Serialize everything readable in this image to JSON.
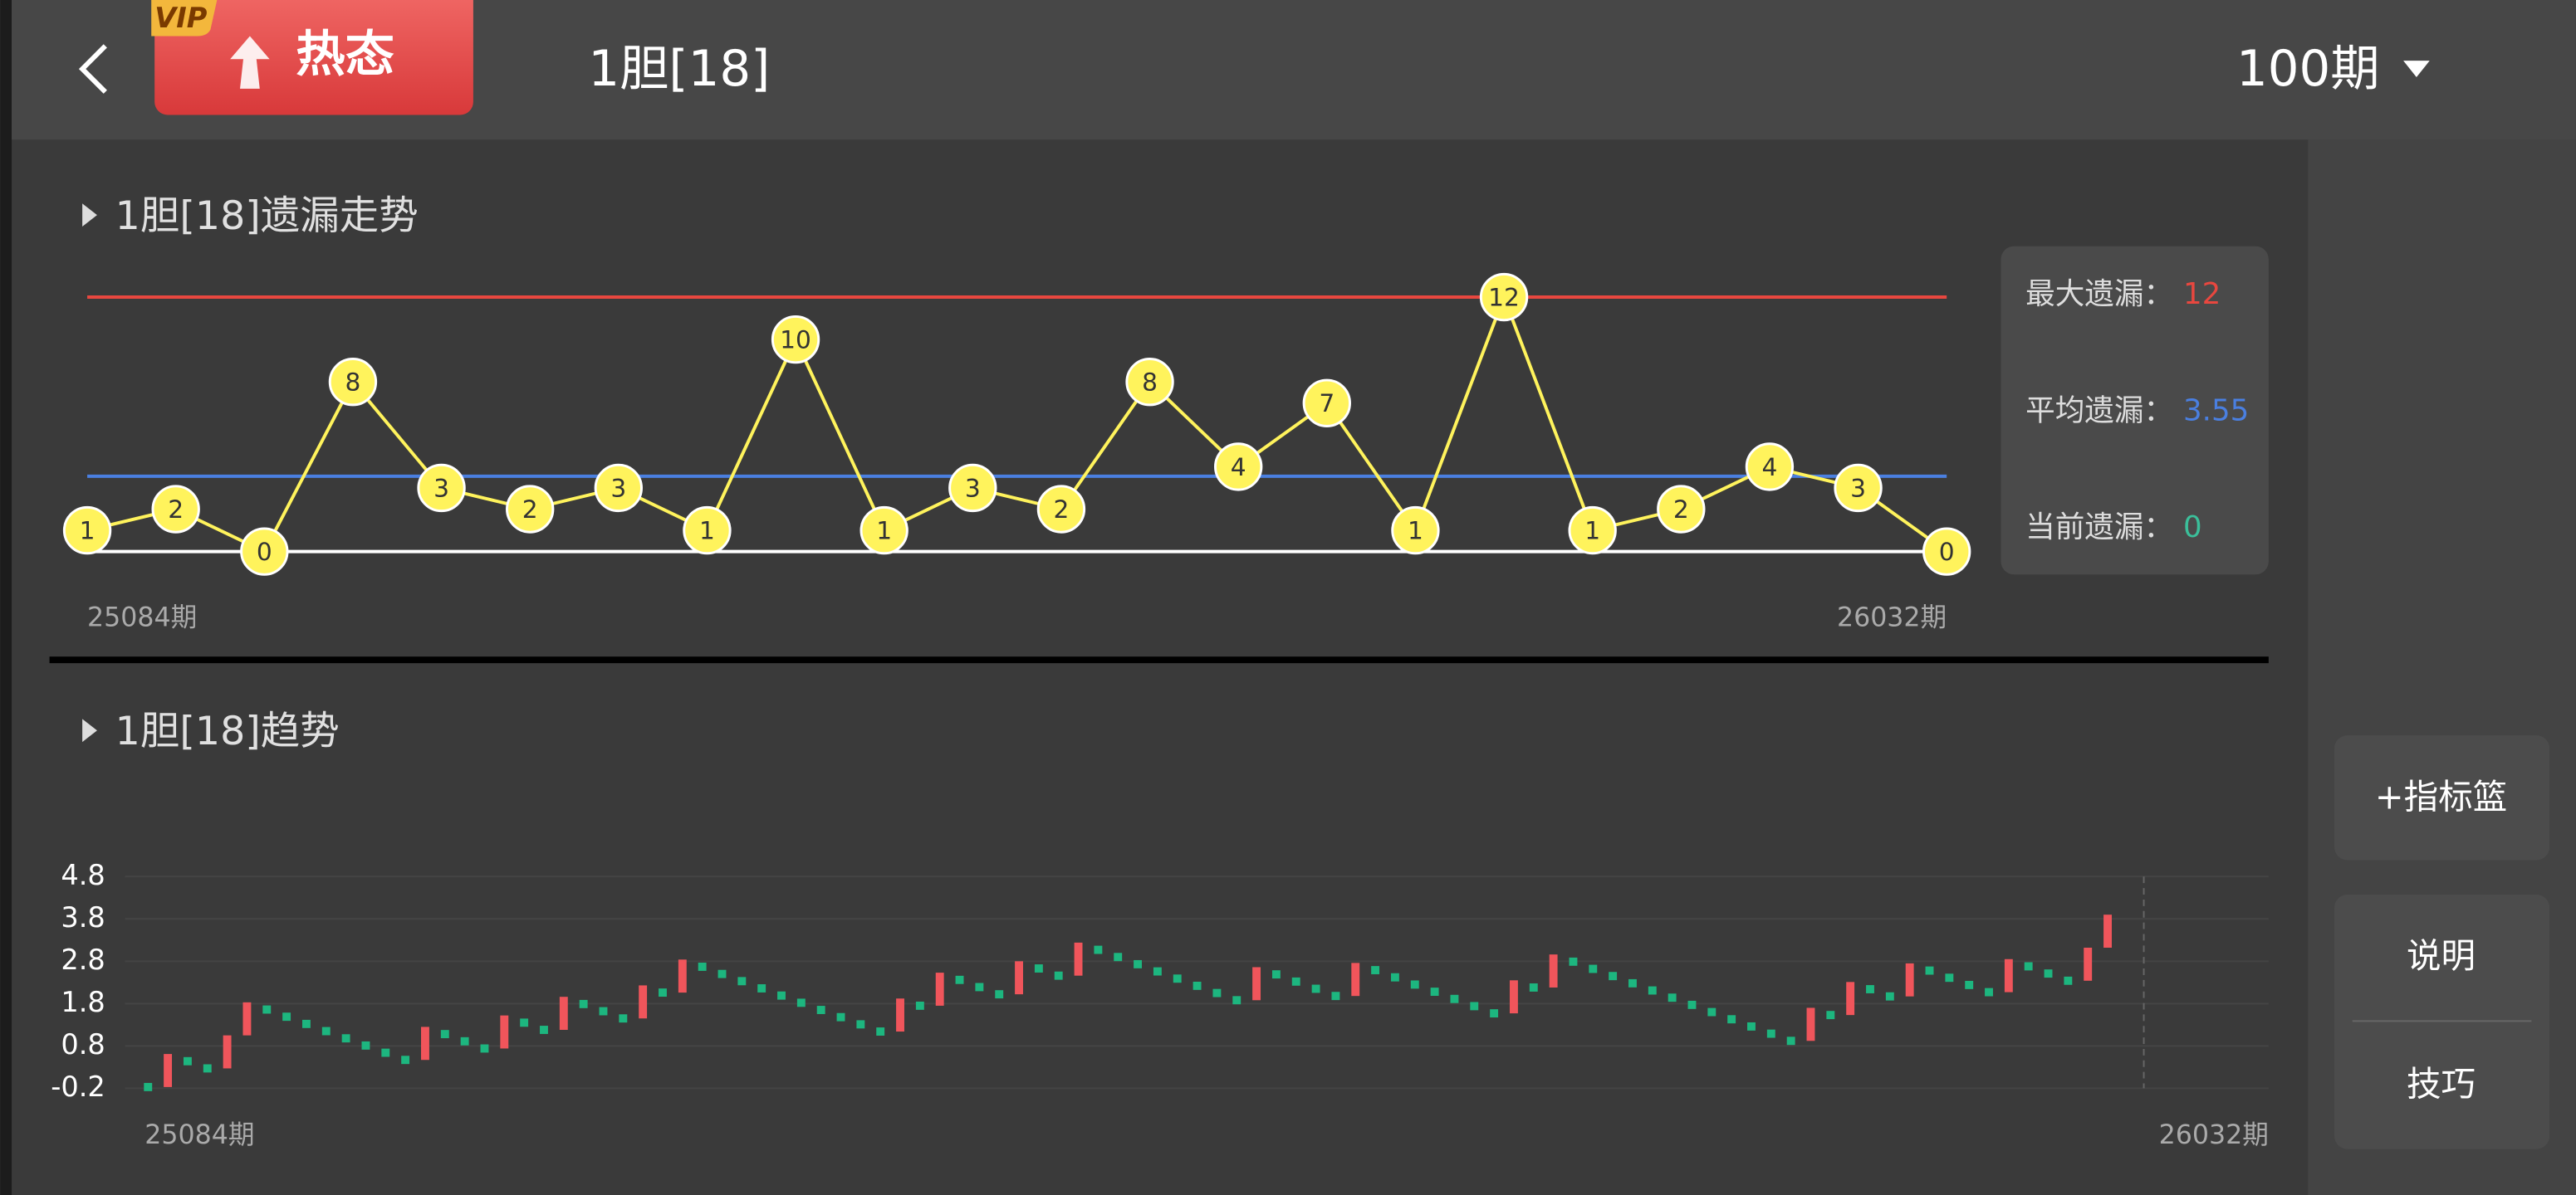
{
  "header": {
    "vip": "VIP",
    "badge": "热态",
    "title": "1胆[18]",
    "period": "100期"
  },
  "sidebar": {
    "buttons": [
      "+指标篮",
      "说明",
      "技巧"
    ]
  },
  "chart_data": [
    {
      "type": "line",
      "title": "1胆[18]遗漏走势",
      "values": [
        1,
        2,
        0,
        8,
        3,
        2,
        3,
        1,
        10,
        1,
        3,
        2,
        8,
        4,
        7,
        1,
        12,
        1,
        2,
        4,
        3,
        0
      ],
      "color": "#fff35c",
      "ylim": [
        0,
        12
      ],
      "period_labels": [
        "25084期",
        "26032期"
      ],
      "stats": [
        {
          "label": "最大遗漏：",
          "value": 12,
          "color": "#e8473f"
        },
        {
          "label": "平均遗漏：",
          "value": 3.55,
          "color": "#4a7fe0"
        },
        {
          "label": "当前遗漏：",
          "value": 0,
          "color": "#3bbf9a"
        }
      ]
    },
    {
      "type": "trend",
      "title": "1胆[18]趋势",
      "values": [
        -0.17,
        0.61,
        0.44,
        0.27,
        1.05,
        1.83,
        1.66,
        1.49,
        1.32,
        1.15,
        0.98,
        0.81,
        0.64,
        0.47,
        1.25,
        1.08,
        0.91,
        0.74,
        1.52,
        1.35,
        1.18,
        1.96,
        1.79,
        1.62,
        1.45,
        2.23,
        2.06,
        2.84,
        2.67,
        2.5,
        2.33,
        2.16,
        1.99,
        1.82,
        1.65,
        1.48,
        1.31,
        1.14,
        1.92,
        1.75,
        2.53,
        2.36,
        2.19,
        2.02,
        2.8,
        2.63,
        2.46,
        3.24,
        3.07,
        2.9,
        2.73,
        2.56,
        2.39,
        2.22,
        2.05,
        1.88,
        2.66,
        2.49,
        2.32,
        2.15,
        1.98,
        2.76,
        2.59,
        2.42,
        2.25,
        2.08,
        1.91,
        1.74,
        1.57,
        2.35,
        2.18,
        2.96,
        2.79,
        2.62,
        2.45,
        2.28,
        2.11,
        1.94,
        1.77,
        1.6,
        1.43,
        1.26,
        1.09,
        0.92,
        1.7,
        1.53,
        2.31,
        2.14,
        1.97,
        2.75,
        2.58,
        2.41,
        2.24,
        2.07,
        2.85,
        2.68,
        2.51,
        2.34,
        3.12,
        3.9
      ],
      "up_color": "#f0555b",
      "down_color": "#1db67f",
      "ylim": [
        -0.2,
        4.8
      ],
      "yticks": [
        -0.2,
        0.8,
        1.8,
        2.8,
        3.8,
        4.8
      ],
      "grid": true,
      "period_labels": [
        "25084期",
        "26032期"
      ]
    }
  ]
}
